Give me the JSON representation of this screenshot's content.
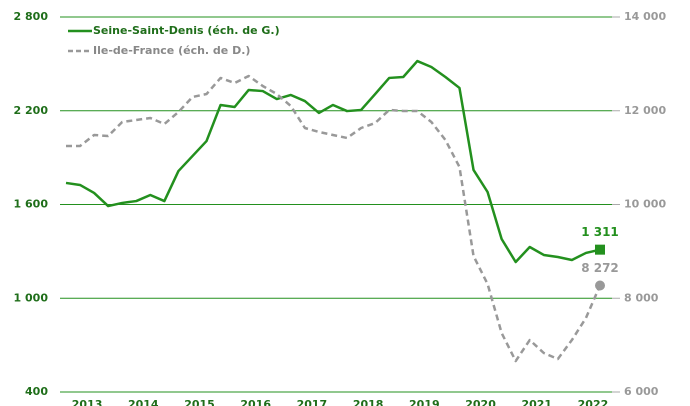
{
  "chart_data": {
    "type": "line",
    "categories": [
      null,
      "2013",
      null,
      null,
      null,
      "2014",
      null,
      null,
      null,
      "2015",
      null,
      null,
      null,
      "2016",
      null,
      null,
      null,
      "2017",
      null,
      null,
      null,
      "2018",
      null,
      null,
      null,
      "2019",
      null,
      null,
      null,
      "2020",
      null,
      null,
      null,
      "2021",
      null,
      null,
      null,
      "2022",
      null
    ],
    "series": [
      {
        "name": "Seine-Saint-Denis (éch. de G.)",
        "color": "#23901e",
        "axis": "y",
        "values": [
          1738,
          1725,
          1674,
          1590,
          1610,
          1622,
          1661,
          1622,
          1814,
          1910,
          2006,
          2237,
          2224,
          2333,
          2326,
          2275,
          2301,
          2262,
          2186,
          2237,
          2198,
          2205,
          2307,
          2410,
          2416,
          2518,
          2480,
          2416,
          2346,
          1821,
          1680,
          1379,
          1232,
          1328,
          1277,
          1264,
          1245,
          1290,
          1311
        ],
        "value_labels": [
          null,
          null,
          null,
          null,
          null,
          null,
          null,
          null,
          null,
          null,
          null,
          null,
          null,
          null,
          null,
          null,
          null,
          null,
          null,
          null,
          null,
          null,
          null,
          null,
          null,
          null,
          null,
          null,
          null,
          null,
          null,
          null,
          null,
          null,
          null,
          null,
          null,
          null,
          "1 311"
        ]
      },
      {
        "name": "Ile-de-France (éch. de D.)",
        "color": "#999999",
        "axis": "y2",
        "dashed": true,
        "values": [
          11248,
          11248,
          11483,
          11461,
          11760,
          11803,
          11845,
          11717,
          11973,
          12293,
          12357,
          12699,
          12592,
          12741,
          12528,
          12357,
          12101,
          11632,
          11547,
          11483,
          11419,
          11632,
          11739,
          12016,
          11995,
          11995,
          11760,
          11376,
          10800,
          8901,
          8304,
          7259,
          6661,
          7109,
          6832,
          6704,
          7109,
          7579,
          8272
        ],
        "value_labels": [
          null,
          null,
          null,
          null,
          null,
          null,
          null,
          null,
          null,
          null,
          null,
          null,
          null,
          null,
          null,
          null,
          null,
          null,
          null,
          null,
          null,
          null,
          null,
          null,
          null,
          null,
          null,
          null,
          null,
          null,
          null,
          null,
          null,
          null,
          null,
          null,
          null,
          null,
          "8 272"
        ]
      }
    ],
    "ylim": [
      400,
      2800
    ],
    "yticks": [
      400,
      {
        "value": 1000,
        "label": "1 000"
      },
      {
        "value": 1600,
        "label": "1 600"
      },
      {
        "value": 2200,
        "label": "2 200"
      },
      {
        "value": 2800,
        "label": "2 800"
      }
    ],
    "y2lim": [
      6000,
      14000
    ],
    "y2ticks": [
      {
        "value": 6000,
        "label": "6 000"
      },
      {
        "value": 8000,
        "label": "8 000"
      },
      {
        "value": 10000,
        "label": "10 000"
      },
      {
        "value": 12000,
        "label": "12 000"
      },
      {
        "value": 14000,
        "label": "14 000"
      }
    ],
    "grid": true,
    "legend": "upper left"
  }
}
